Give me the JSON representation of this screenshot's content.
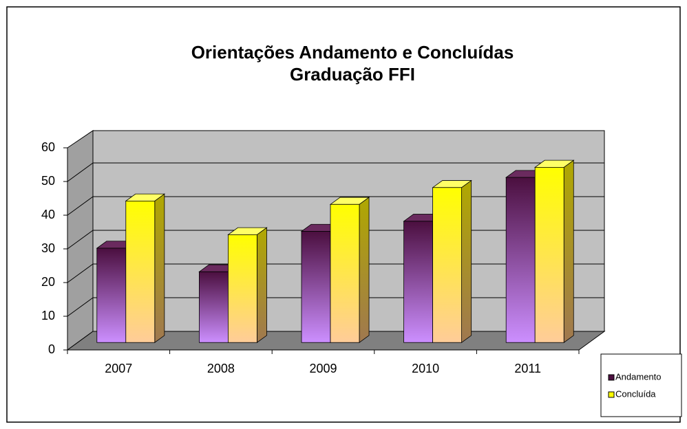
{
  "chart_data": {
    "type": "bar3d",
    "title": "Orientações Andamento e Concluídas",
    "subtitle": "Graduação FFI",
    "categories": [
      "2007",
      "2008",
      "2009",
      "2010",
      "2011"
    ],
    "series": [
      {
        "name": "Andamento",
        "color": "#4b0f3f",
        "values": [
          28,
          21,
          33,
          36,
          49
        ]
      },
      {
        "name": "Concluída",
        "color": "#ffff00",
        "values": [
          42,
          32,
          41,
          46,
          52
        ]
      }
    ],
    "ylim": [
      0,
      60
    ],
    "yticks": [
      0,
      10,
      20,
      30,
      40,
      50,
      60
    ],
    "grid": true,
    "legend": "bottom-right"
  }
}
